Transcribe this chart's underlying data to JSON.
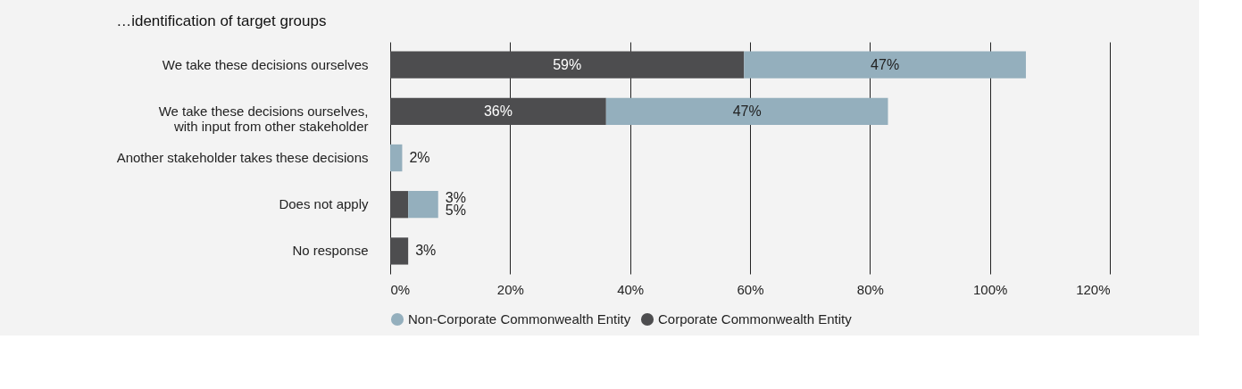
{
  "chart_data": {
    "type": "bar",
    "orientation": "horizontal",
    "stacked": true,
    "title": "…identification of target groups",
    "categories": [
      "We take these decisions ourselves",
      "We take these decisions ourselves,\nwith input from other stakeholder",
      "Another stakeholder takes these decisions",
      "Does not apply",
      "No response"
    ],
    "series": [
      {
        "name": "Corporate Commonwealth Entity",
        "color": "#4d4d4f",
        "values": [
          59,
          36,
          null,
          3,
          3
        ],
        "value_labels": [
          "59%",
          "36%",
          null,
          "3%",
          "3%"
        ]
      },
      {
        "name": "Non-Corporate Commonwealth Entity",
        "color": "#94afbd",
        "values": [
          47,
          47,
          2,
          5,
          null
        ],
        "value_labels": [
          "47%",
          "47%",
          "2%",
          "5%",
          null
        ]
      }
    ],
    "xlim": [
      0,
      120
    ],
    "xticks": [
      {
        "value": 0,
        "label": "0%"
      },
      {
        "value": 20,
        "label": "20%"
      },
      {
        "value": 40,
        "label": "40%"
      },
      {
        "value": 60,
        "label": "60%"
      },
      {
        "value": 80,
        "label": "80%"
      },
      {
        "value": 100,
        "label": "100%"
      },
      {
        "value": 120,
        "label": "120%"
      }
    ],
    "grid": "x",
    "legend": "bottom"
  }
}
